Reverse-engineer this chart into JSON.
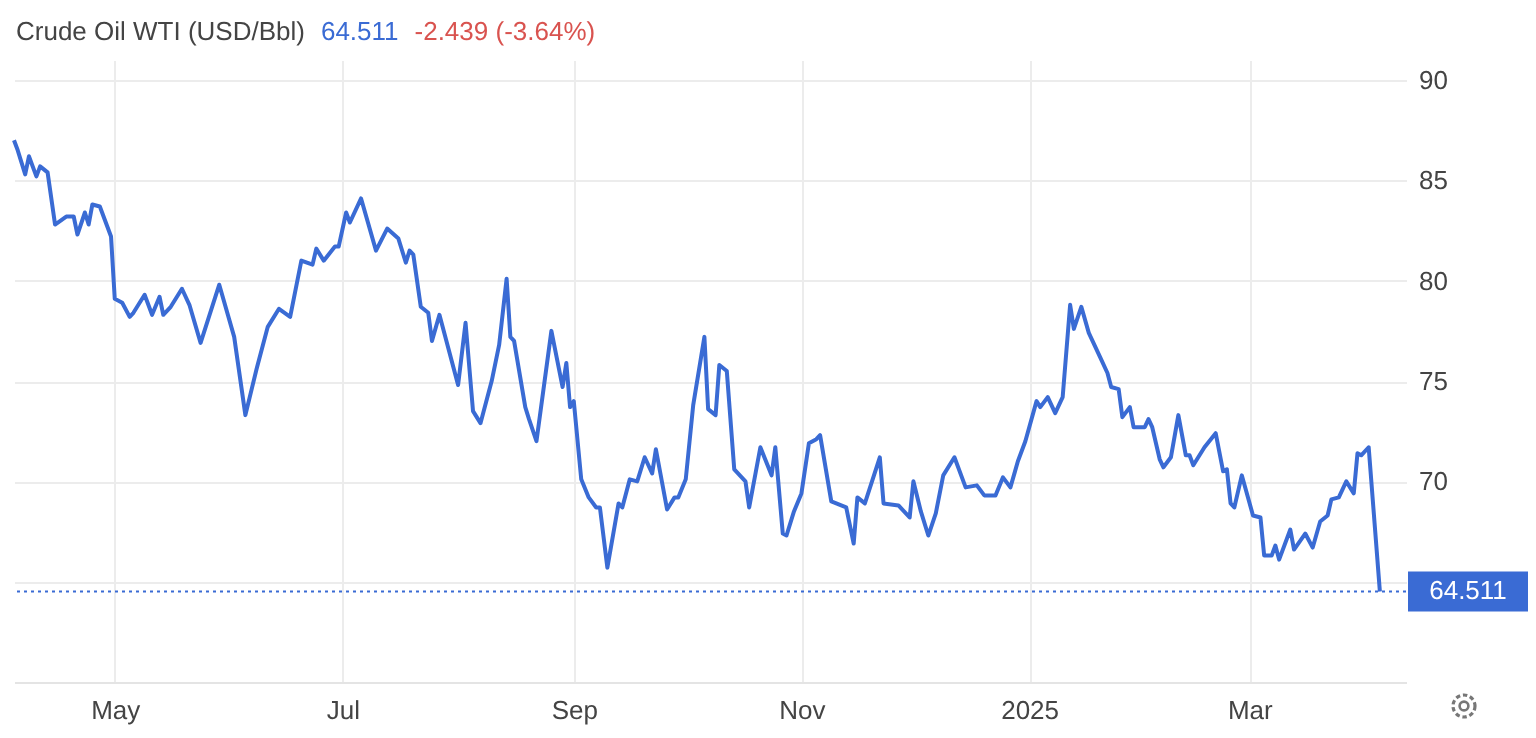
{
  "chart_data": {
    "type": "line",
    "title": "Crude Oil WTI (USD/Bbl)",
    "annotations": [
      "64.511",
      "-2.439 (-3.64%)"
    ],
    "x": [
      "2024-04-04",
      "2024-04-05",
      "2024-04-07",
      "2024-04-08",
      "2024-04-10",
      "2024-04-11",
      "2024-04-13",
      "2024-04-15",
      "2024-04-18",
      "2024-04-20",
      "2024-04-21",
      "2024-04-23",
      "2024-04-24",
      "2024-04-25",
      "2024-04-27",
      "2024-04-30",
      "2024-05-01",
      "2024-05-03",
      "2024-05-05",
      "2024-05-06",
      "2024-05-09",
      "2024-05-11",
      "2024-05-13",
      "2024-05-14",
      "2024-05-16",
      "2024-05-19",
      "2024-05-21",
      "2024-05-24",
      "2024-05-29",
      "2024-06-02",
      "2024-06-05",
      "2024-06-08",
      "2024-06-11",
      "2024-06-14",
      "2024-06-17",
      "2024-06-20",
      "2024-06-23",
      "2024-06-24",
      "2024-06-26",
      "2024-06-29",
      "2024-06-30",
      "2024-07-02",
      "2024-07-03",
      "2024-07-06",
      "2024-07-10",
      "2024-07-13",
      "2024-07-16",
      "2024-07-18",
      "2024-07-19",
      "2024-07-20",
      "2024-07-22",
      "2024-07-24",
      "2024-07-25",
      "2024-07-27",
      "2024-08-01",
      "2024-08-03",
      "2024-08-05",
      "2024-08-07",
      "2024-08-10",
      "2024-08-12",
      "2024-08-14",
      "2024-08-15",
      "2024-08-16",
      "2024-08-19",
      "2024-08-20",
      "2024-08-22",
      "2024-08-26",
      "2024-08-29",
      "2024-08-30",
      "2024-08-31",
      "2024-09-01",
      "2024-09-03",
      "2024-09-05",
      "2024-09-07",
      "2024-09-08",
      "2024-09-10",
      "2024-09-13",
      "2024-09-14",
      "2024-09-16",
      "2024-09-18",
      "2024-09-20",
      "2024-09-22",
      "2024-09-23",
      "2024-09-26",
      "2024-09-28",
      "2024-09-29",
      "2024-10-01",
      "2024-10-03",
      "2024-10-06",
      "2024-10-07",
      "2024-10-09",
      "2024-10-10",
      "2024-10-12",
      "2024-10-14",
      "2024-10-17",
      "2024-10-18",
      "2024-10-21",
      "2024-10-24",
      "2024-10-25",
      "2024-10-27",
      "2024-10-28",
      "2024-10-30",
      "2024-11-01",
      "2024-11-03",
      "2024-11-05",
      "2024-11-06",
      "2024-11-09",
      "2024-11-13",
      "2024-11-15",
      "2024-11-16",
      "2024-11-18",
      "2024-11-22",
      "2024-11-23",
      "2024-11-27",
      "2024-11-30",
      "2024-12-01",
      "2024-12-03",
      "2024-12-05",
      "2024-12-07",
      "2024-12-09",
      "2024-12-12",
      "2024-12-15",
      "2024-12-18",
      "2024-12-20",
      "2024-12-23",
      "2024-12-25",
      "2024-12-27",
      "2024-12-29",
      "2024-12-31",
      "2025-01-03",
      "2025-01-04",
      "2025-01-06",
      "2025-01-08",
      "2025-01-10",
      "2025-01-12",
      "2025-01-13",
      "2025-01-15",
      "2025-01-17",
      "2025-01-20",
      "2025-01-22",
      "2025-01-23",
      "2025-01-25",
      "2025-01-26",
      "2025-01-28",
      "2025-01-29",
      "2025-02-01",
      "2025-02-02",
      "2025-02-03",
      "2025-02-05",
      "2025-02-06",
      "2025-02-08",
      "2025-02-10",
      "2025-02-12",
      "2025-02-13",
      "2025-02-14",
      "2025-02-17",
      "2025-02-20",
      "2025-02-22",
      "2025-02-23",
      "2025-02-24",
      "2025-02-25",
      "2025-02-27",
      "2025-03-02",
      "2025-03-04",
      "2025-03-05",
      "2025-03-07",
      "2025-03-08",
      "2025-03-09",
      "2025-03-12",
      "2025-03-13",
      "2025-03-16",
      "2025-03-18",
      "2025-03-20",
      "2025-03-22",
      "2025-03-23",
      "2025-03-25",
      "2025-03-27",
      "2025-03-29",
      "2025-03-30",
      "2025-03-31",
      "2025-04-02",
      "2025-04-05"
    ],
    "series": [
      {
        "color": "#3a6bd4",
        "values": [
          87.0,
          86.5,
          85.3,
          86.2,
          85.2,
          85.7,
          85.4,
          82.8,
          83.2,
          83.2,
          82.3,
          83.4,
          82.8,
          83.8,
          83.7,
          82.2,
          79.1,
          78.9,
          78.2,
          78.4,
          79.3,
          78.3,
          79.2,
          78.3,
          78.7,
          79.6,
          78.8,
          76.9,
          79.8,
          77.2,
          73.3,
          75.6,
          77.7,
          78.6,
          78.2,
          81.0,
          80.8,
          81.6,
          81.0,
          81.7,
          81.7,
          83.4,
          82.9,
          84.1,
          81.5,
          82.6,
          82.1,
          80.9,
          81.5,
          81.3,
          78.7,
          78.4,
          77.0,
          78.3,
          74.8,
          77.9,
          73.5,
          72.9,
          75.0,
          76.8,
          80.1,
          77.2,
          77.0,
          73.7,
          73.1,
          72.0,
          77.5,
          74.7,
          75.9,
          73.7,
          74.0,
          70.1,
          69.2,
          68.7,
          68.7,
          65.7,
          68.9,
          68.7,
          70.1,
          70.0,
          71.2,
          70.4,
          71.6,
          68.6,
          69.2,
          69.2,
          70.1,
          73.8,
          77.2,
          73.6,
          73.3,
          75.8,
          75.5,
          70.6,
          70.0,
          68.7,
          71.7,
          70.3,
          71.7,
          67.4,
          67.3,
          68.5,
          69.4,
          71.9,
          72.1,
          72.3,
          69.0,
          68.7,
          66.9,
          69.2,
          68.9,
          71.2,
          68.9,
          68.8,
          68.2,
          70.0,
          68.5,
          67.3,
          68.4,
          70.3,
          71.2,
          69.7,
          69.8,
          69.3,
          69.3,
          70.2,
          69.7,
          71.0,
          72.0,
          74.0,
          73.7,
          74.2,
          73.4,
          74.2,
          78.8,
          77.6,
          78.7,
          77.4,
          76.2,
          75.4,
          74.7,
          74.6,
          73.2,
          73.7,
          72.7,
          72.7,
          73.1,
          72.7,
          71.1,
          70.7,
          71.2,
          73.3,
          71.3,
          71.3,
          70.8,
          71.7,
          72.4,
          70.5,
          70.6,
          68.9,
          68.7,
          70.3,
          68.3,
          68.2,
          66.3,
          66.3,
          66.8,
          66.1,
          67.6,
          66.6,
          67.4,
          66.7,
          68.0,
          68.3,
          69.1,
          69.2,
          70.0,
          69.4,
          71.4,
          71.3,
          71.7,
          64.511
        ]
      }
    ],
    "xlim": [
      "2024-04-04",
      "2025-04-12"
    ],
    "xticks": [
      {
        "value": "2024-05-01",
        "label": "May"
      },
      {
        "value": "2024-07-01",
        "label": "Jul"
      },
      {
        "value": "2024-09-01",
        "label": "Sep"
      },
      {
        "value": "2024-11-01",
        "label": "Nov"
      },
      {
        "value": "2025-01-01",
        "label": "2025"
      },
      {
        "value": "2025-03-01",
        "label": "Mar"
      }
    ],
    "ylim": [
      60,
      91
    ],
    "yticks": [
      {
        "value": 65,
        "label": null
      },
      70,
      75,
      80,
      85,
      90
    ],
    "grid": true,
    "ref_lines": [
      {
        "axis": "y",
        "value": 64.511,
        "label": "64.511",
        "color": "#3a6bd4",
        "line_style": "dotted"
      }
    ]
  }
}
